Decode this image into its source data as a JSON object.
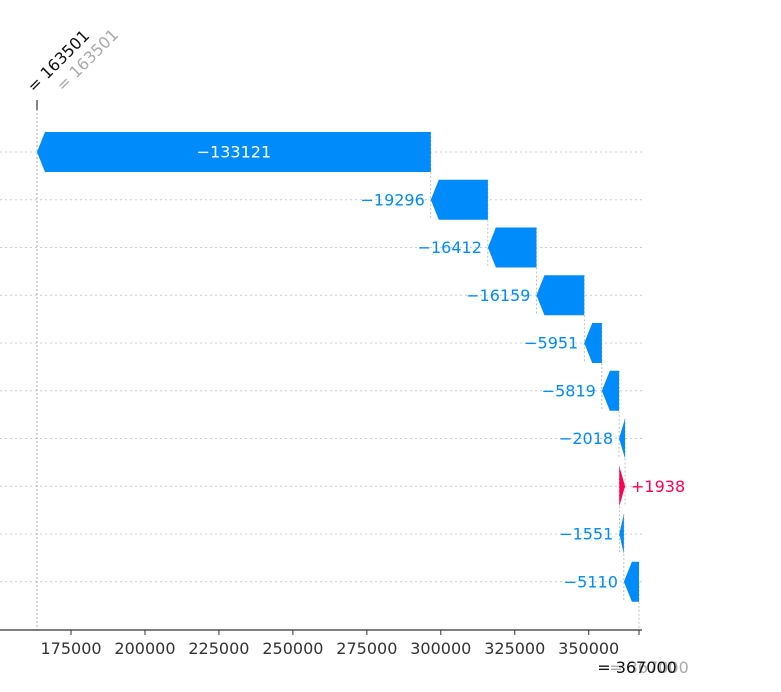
{
  "chart_data": {
    "type": "waterfall",
    "base_value": 367000,
    "final_value": 163501,
    "base_label": "= 367000",
    "base_label_ghost": "= 367000",
    "final_label": "= 163501",
    "final_label_ghost": "= 163501",
    "contributions": [
      {
        "value": -133121,
        "label": "−133121"
      },
      {
        "value": -19296,
        "label": "−19296"
      },
      {
        "value": -16412,
        "label": "−16412"
      },
      {
        "value": -16159,
        "label": "−16159"
      },
      {
        "value": -5951,
        "label": "−5951"
      },
      {
        "value": -5819,
        "label": "−5819"
      },
      {
        "value": -2018,
        "label": "−2018"
      },
      {
        "value": 1938,
        "label": "+1938"
      },
      {
        "value": -1551,
        "label": "−1551"
      },
      {
        "value": -5110,
        "label": "−5110"
      }
    ],
    "xticks": [
      175000,
      200000,
      225000,
      250000,
      275000,
      300000,
      325000,
      350000
    ],
    "xtick_labels": [
      "175000",
      "200000",
      "225000",
      "250000",
      "275000",
      "300000",
      "325000",
      "350000"
    ],
    "colors": {
      "negative": "#008bfb",
      "positive": "#ff0051",
      "grid": "#cccccc",
      "axis": "#333333",
      "ghost": "#aaaaaa"
    }
  }
}
